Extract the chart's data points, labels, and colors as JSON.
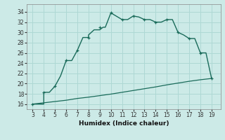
{
  "xlabel": "Humidex (Indice chaleur)",
  "xlim": [
    2.5,
    19.8
  ],
  "ylim": [
    15.0,
    35.5
  ],
  "xticks": [
    3,
    4,
    5,
    6,
    7,
    8,
    9,
    10,
    11,
    12,
    13,
    14,
    15,
    16,
    17,
    18,
    19
  ],
  "yticks": [
    16,
    18,
    20,
    22,
    24,
    26,
    28,
    30,
    32,
    34
  ],
  "bg_color": "#cceae7",
  "line_color": "#1a6b5a",
  "grid_color": "#aed8d4",
  "curve1_x": [
    3,
    3.5,
    4,
    4,
    4.5,
    5,
    5,
    5.5,
    6,
    6.5,
    7,
    7.5,
    8,
    8,
    8.5,
    9,
    9.3,
    9.5,
    10,
    11,
    11.5,
    12,
    12.5,
    13,
    13.5,
    14,
    14.5,
    15,
    15.5,
    16,
    16.5,
    17,
    17.5,
    18,
    18.1,
    18.5,
    19
  ],
  "curve1_y": [
    16,
    16,
    16,
    18.3,
    18.3,
    19.5,
    19.5,
    21.5,
    24.5,
    24.5,
    26.5,
    29,
    29,
    29.5,
    30.5,
    30.5,
    31,
    31,
    33.8,
    32.5,
    32.5,
    33.2,
    33,
    32.5,
    32.5,
    32,
    32,
    32.5,
    32.5,
    30,
    29.5,
    28.8,
    28.8,
    26,
    26,
    26,
    21
  ],
  "curve2_x": [
    3,
    4,
    5,
    6,
    7,
    8,
    9,
    10,
    11,
    12,
    13,
    14,
    15,
    16,
    17,
    18,
    19
  ],
  "curve2_y": [
    16.0,
    16.25,
    16.5,
    16.75,
    17.1,
    17.35,
    17.65,
    17.95,
    18.3,
    18.65,
    19.0,
    19.35,
    19.75,
    20.1,
    20.45,
    20.75,
    21.0
  ],
  "marker_x1": [
    3,
    4,
    5,
    6,
    7,
    8,
    9,
    10,
    11,
    12,
    13,
    14,
    15,
    16,
    17,
    18,
    19
  ],
  "marker_y1": [
    16,
    18.3,
    19.5,
    24.5,
    26.5,
    29,
    31,
    33.8,
    32.5,
    33.2,
    32.5,
    32,
    32.5,
    30,
    28.8,
    26,
    21
  ],
  "tick_fontsize": 5.5,
  "xlabel_fontsize": 6.5
}
